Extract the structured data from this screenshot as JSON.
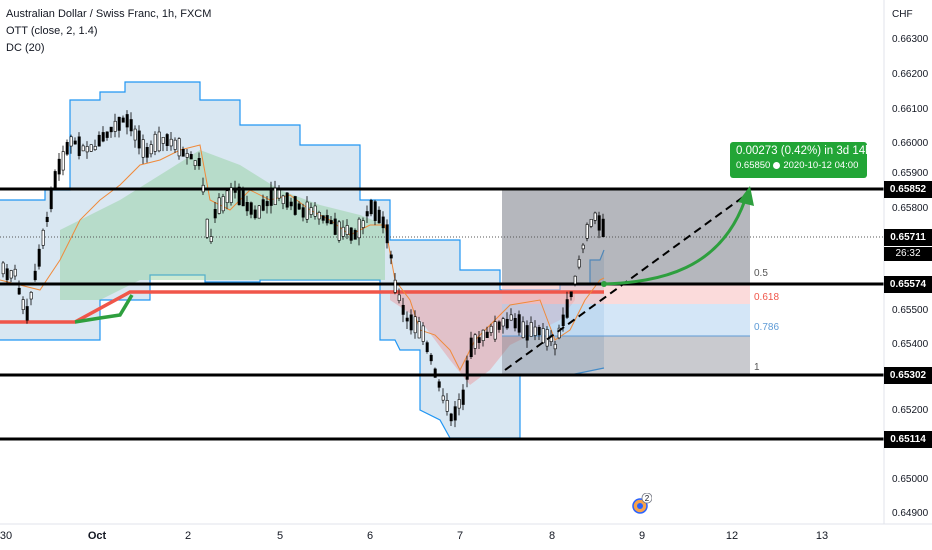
{
  "legend": {
    "symbol": "Australian Dollar / Swiss Franc, 1h, FXCM",
    "ott": "OTT (close, 2, 1.4)",
    "dc": "DC (20)"
  },
  "price_axis": {
    "currency": "CHF",
    "labels": [
      "0.66300",
      "0.66200",
      "0.66100",
      "0.66000",
      "0.65900",
      "0.65800",
      "0.65500",
      "0.65400",
      "0.65200",
      "0.65000",
      "0.64900"
    ]
  },
  "time_axis": {
    "labels": [
      "30",
      "Oct",
      "2",
      "5",
      "6",
      "7",
      "8",
      "9",
      "12",
      "13"
    ]
  },
  "price_tags": {
    "r1": "0.65852",
    "current": "0.65711",
    "countdown": "26:32",
    "r2": "0.65574",
    "s1": "0.65302",
    "s2": "0.65114"
  },
  "fib_labels": {
    "f05": "0.5",
    "f0618": "0.618",
    "f0786": "0.786",
    "f1": "1"
  },
  "measure": {
    "line1": "0.00273 (0.42%) in 3d 14h",
    "price": "0.65850",
    "date": "2020-10-12  04:00"
  },
  "badge": {
    "count": "2"
  },
  "colors": {
    "bull_fill": "#8fcf9a",
    "bear_fill": "#e7a3a8",
    "channel_fill": "#b9d4e8",
    "channel_line": "#2196f3",
    "red_line": "#f0564a",
    "green_arrow": "#2e9f3e",
    "tag_bg": "#000000"
  }
}
